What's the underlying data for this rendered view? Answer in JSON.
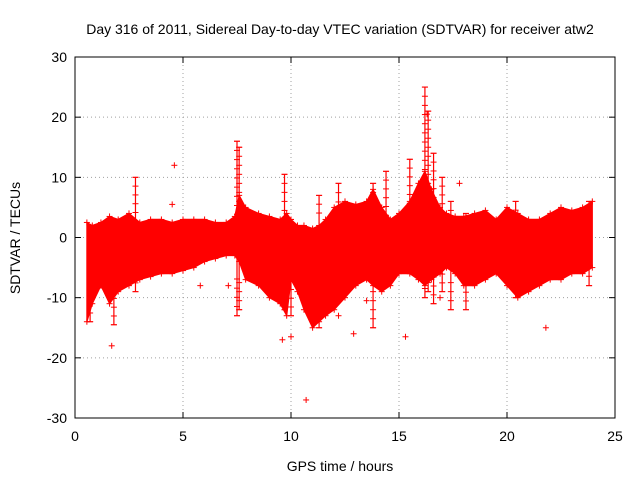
{
  "chart_data": {
    "type": "scatter",
    "title": "Day 316 of 2011, Sidereal Day-to-day VTEC variation (SDTVAR) for receiver atw2",
    "xlabel": "GPS time / hours",
    "ylabel": "SDTVAR / TECUs",
    "xlim": [
      0,
      25
    ],
    "ylim": [
      -30,
      30
    ],
    "xticks": [
      0,
      5,
      10,
      15,
      20,
      25
    ],
    "yticks": [
      -30,
      -20,
      -10,
      0,
      10,
      20,
      30
    ],
    "grid": true,
    "marker": "+",
    "color": "#ff0000",
    "envelope": {
      "description": "dense band of SDTVAR values vs time (min/max per time bin)",
      "x": [
        0.55,
        0.8,
        1.2,
        1.6,
        2.0,
        2.5,
        3.0,
        3.5,
        4.0,
        4.5,
        5.0,
        5.5,
        6.0,
        6.5,
        7.0,
        7.4,
        7.6,
        7.9,
        8.5,
        9.0,
        9.5,
        9.8,
        10.0,
        10.3,
        10.6,
        11.0,
        11.3,
        11.6,
        12.0,
        12.5,
        13.0,
        13.5,
        13.8,
        14.2,
        14.6,
        15.0,
        15.5,
        15.9,
        16.2,
        16.5,
        16.9,
        17.2,
        17.6,
        18.0,
        18.5,
        19.0,
        19.5,
        20.0,
        20.5,
        21.0,
        21.5,
        22.0,
        22.5,
        23.0,
        23.5,
        23.95
      ],
      "ymin": [
        -14,
        -11,
        -8,
        -11,
        -9,
        -8,
        -7,
        -6.5,
        -6,
        -6,
        -5.5,
        -5,
        -4,
        -3.5,
        -3,
        -3,
        -4,
        -7,
        -8,
        -10,
        -11,
        -13,
        -7,
        -9,
        -12,
        -15,
        -14,
        -13,
        -12,
        -10,
        -8,
        -7,
        -8,
        -9,
        -8,
        -6,
        -6,
        -7,
        -8,
        -7,
        -6,
        -5,
        -6,
        -8,
        -8,
        -7,
        -6,
        -8,
        -10,
        -9,
        -8,
        -7,
        -7,
        -6,
        -6,
        -5
      ],
      "ymax": [
        2.5,
        2.0,
        2.5,
        3.5,
        3.0,
        4.0,
        2.5,
        3.0,
        3.0,
        2.5,
        3.0,
        3.0,
        3.0,
        2.5,
        2.5,
        3.5,
        7.0,
        5.0,
        4.0,
        3.5,
        3.0,
        4.0,
        3.0,
        2.0,
        2.0,
        1.5,
        2.0,
        3.0,
        5.0,
        6.0,
        5.5,
        6.0,
        8.0,
        5.0,
        3.0,
        4.0,
        6.0,
        9.0,
        11.0,
        8.0,
        5.0,
        4.0,
        3.5,
        3.5,
        4.0,
        4.5,
        3.0,
        5.0,
        4.0,
        3.0,
        3.0,
        4.0,
        5.0,
        4.5,
        5.0,
        6.0
      ]
    },
    "spikes": [
      {
        "x": 0.7,
        "low": -14.0,
        "high": 2.0
      },
      {
        "x": 1.8,
        "low": -14.5,
        "high": 3.0
      },
      {
        "x": 2.8,
        "low": -9.0,
        "high": 10.0
      },
      {
        "x": 7.5,
        "low": -13.0,
        "high": 16.0
      },
      {
        "x": 7.6,
        "low": -12.0,
        "high": 15.0
      },
      {
        "x": 9.7,
        "low": -12.0,
        "high": 10.5
      },
      {
        "x": 10.0,
        "low": -13.0,
        "high": 3.0
      },
      {
        "x": 11.3,
        "low": -15.0,
        "high": 7.0
      },
      {
        "x": 12.2,
        "low": -8.0,
        "high": 9.0
      },
      {
        "x": 13.8,
        "low": -15.0,
        "high": 9.0
      },
      {
        "x": 14.4,
        "low": -8.0,
        "high": 11.0
      },
      {
        "x": 15.5,
        "low": -6.0,
        "high": 13.0
      },
      {
        "x": 16.2,
        "low": -10.0,
        "high": 25.0
      },
      {
        "x": 16.35,
        "low": -9.0,
        "high": 21.0
      },
      {
        "x": 16.6,
        "low": -11.0,
        "high": 14.0
      },
      {
        "x": 17.0,
        "low": -9.0,
        "high": 10.0
      },
      {
        "x": 17.4,
        "low": -12.0,
        "high": 6.0
      },
      {
        "x": 18.1,
        "low": -12.0,
        "high": 4.0
      },
      {
        "x": 20.4,
        "low": -10.0,
        "high": 6.0
      },
      {
        "x": 23.8,
        "low": -8.0,
        "high": 6.0
      }
    ],
    "outliers": [
      {
        "x": 1.7,
        "y": -18.0
      },
      {
        "x": 4.5,
        "y": 5.5
      },
      {
        "x": 4.6,
        "y": 12.0
      },
      {
        "x": 9.6,
        "y": -17.0
      },
      {
        "x": 10.0,
        "y": -16.5
      },
      {
        "x": 10.7,
        "y": -27.0
      },
      {
        "x": 12.2,
        "y": -13.0
      },
      {
        "x": 12.9,
        "y": -16.0
      },
      {
        "x": 13.5,
        "y": -10.5
      },
      {
        "x": 15.3,
        "y": -16.5
      },
      {
        "x": 16.3,
        "y": 20.5
      },
      {
        "x": 16.9,
        "y": -10.0
      },
      {
        "x": 17.8,
        "y": 9.0
      },
      {
        "x": 21.8,
        "y": -15.0
      },
      {
        "x": 7.1,
        "y": -8.0
      },
      {
        "x": 5.8,
        "y": -8.0
      }
    ]
  }
}
